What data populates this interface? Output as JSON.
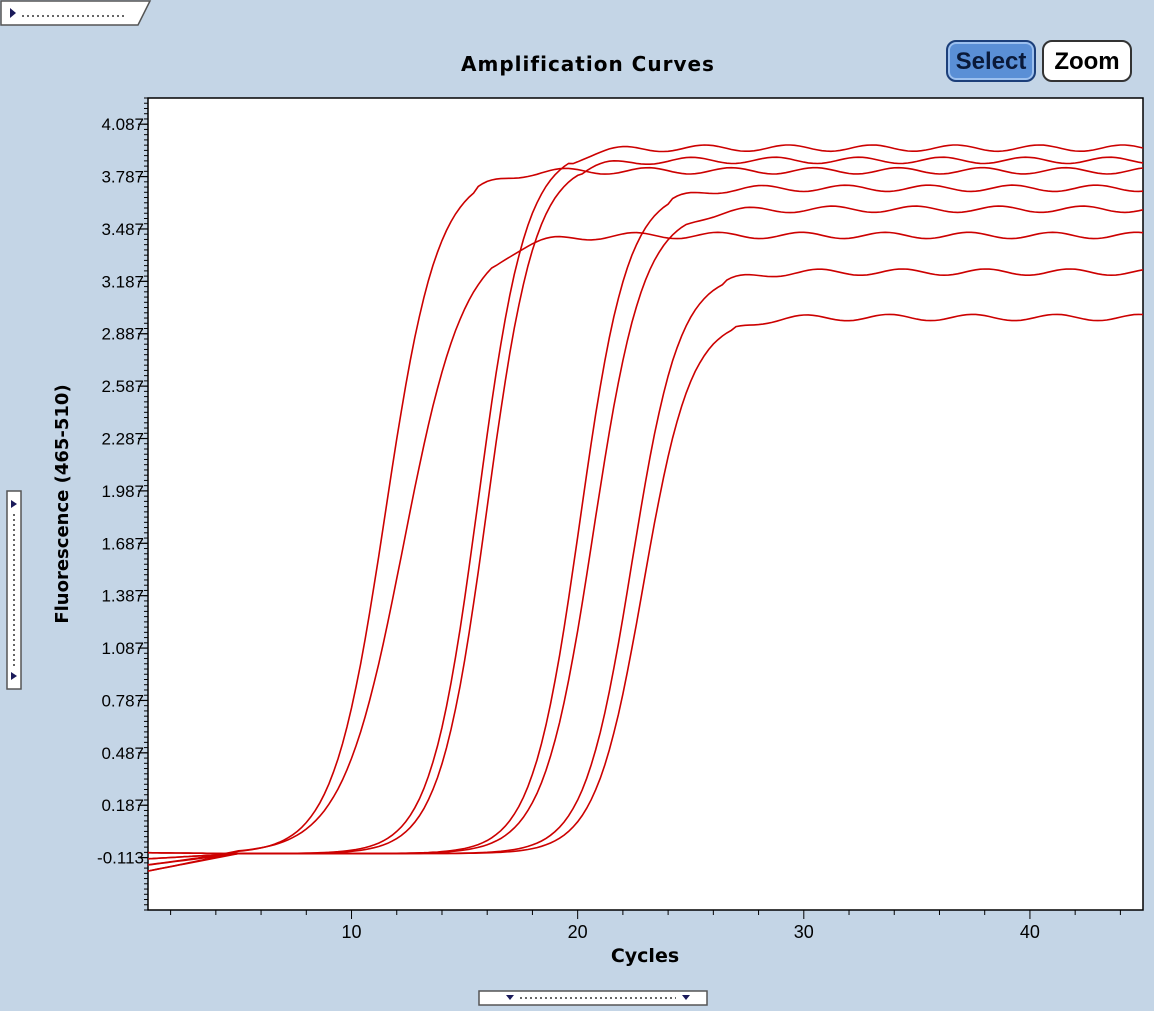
{
  "buttons": {
    "select_label": "Select",
    "zoom_label": "Zoom"
  },
  "colors": {
    "curve": "#cc0000",
    "background": "#c4d5e6",
    "plot_bg": "#ffffff",
    "select_button": "#5a8fd6"
  },
  "icons": {
    "top_tab": "expand-right-arrow-icon",
    "side_tab": "expand-right-arrow-icon",
    "bottom_tab": "expand-down-arrow-icon"
  },
  "chart_data": {
    "type": "line",
    "title": "Amplification Curves",
    "xlabel": "Cycles",
    "ylabel": "Fluorescence (465-510)",
    "xlim": [
      1,
      45
    ],
    "ylim": [
      -0.413,
      4.237
    ],
    "x_ticks": [
      10,
      20,
      30,
      40
    ],
    "y_ticks": [
      "-0.113",
      "0.187",
      "0.487",
      "0.787",
      "1.087",
      "1.387",
      "1.687",
      "1.987",
      "2.287",
      "2.587",
      "2.887",
      "3.187",
      "3.487",
      "3.787",
      "4.087"
    ],
    "grid": false,
    "series": [
      {
        "midpoint": 11.5,
        "plateau": 3.82,
        "slope": 1.15
      },
      {
        "midpoint": 12.3,
        "plateau": 3.45,
        "slope": 1.35
      },
      {
        "midpoint": 15.6,
        "plateau": 3.95,
        "slope": 1.05
      },
      {
        "midpoint": 16.0,
        "plateau": 3.88,
        "slope": 1.05
      },
      {
        "midpoint": 20.1,
        "plateau": 3.72,
        "slope": 1.05
      },
      {
        "midpoint": 20.7,
        "plateau": 3.6,
        "slope": 1.1
      },
      {
        "midpoint": 22.4,
        "plateau": 3.24,
        "slope": 1.05
      },
      {
        "midpoint": 22.9,
        "plateau": 2.98,
        "slope": 1.05
      }
    ]
  }
}
